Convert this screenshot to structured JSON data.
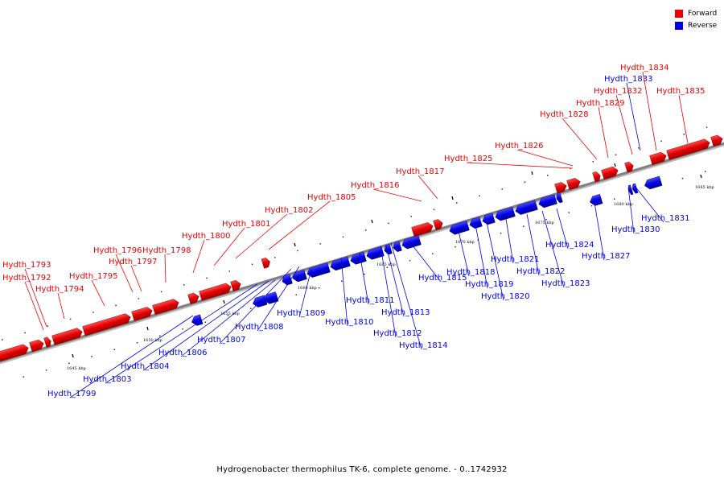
{
  "caption": "Hydrogenobacter thermophilus TK-6, complete genome. - 0..1742932",
  "legend": [
    {
      "label": "Forward",
      "color": "#ee0000"
    },
    {
      "label": "Reverse",
      "color": "#0000ee"
    }
  ],
  "colors": {
    "forward": "#ee0000",
    "reverse": "#0000ee",
    "axis": "#808080"
  },
  "ticks": [
    "1645 kbp",
    "1650 kbp",
    "1655 kbp",
    "1660 kbp",
    "1665 kbp",
    "1670 kbp",
    "1675 kbp",
    "1680 kbp",
    "1685 kbp"
  ],
  "forward_labels": [
    "Hydth_1793",
    "Hydth_1792",
    "Hydth_1794",
    "Hydth_1795",
    "Hydth_1796",
    "Hydth_1797",
    "Hydth_1798",
    "Hydth_1800",
    "Hydth_1801",
    "Hydth_1802",
    "Hydth_1805",
    "Hydth_1816",
    "Hydth_1817",
    "Hydth_1825",
    "Hydth_1826",
    "Hydth_1828",
    "Hydth_1829",
    "Hydth_1832",
    "Hydth_1834",
    "Hydth_1835"
  ],
  "reverse_labels": [
    "Hydth_1833",
    "Hydth_1831",
    "Hydth_1830",
    "Hydth_1827",
    "Hydth_1824",
    "Hydth_1823",
    "Hydth_1822",
    "Hydth_1821",
    "Hydth_1820",
    "Hydth_1819",
    "Hydth_1818",
    "Hydth_1815",
    "Hydth_1814",
    "Hydth_1813",
    "Hydth_1812",
    "Hydth_1811",
    "Hydth_1810",
    "Hydth_1809",
    "Hydth_1808",
    "Hydth_1807",
    "Hydth_1806",
    "Hydth_1804",
    "Hydth_1803",
    "Hydth_1799"
  ]
}
